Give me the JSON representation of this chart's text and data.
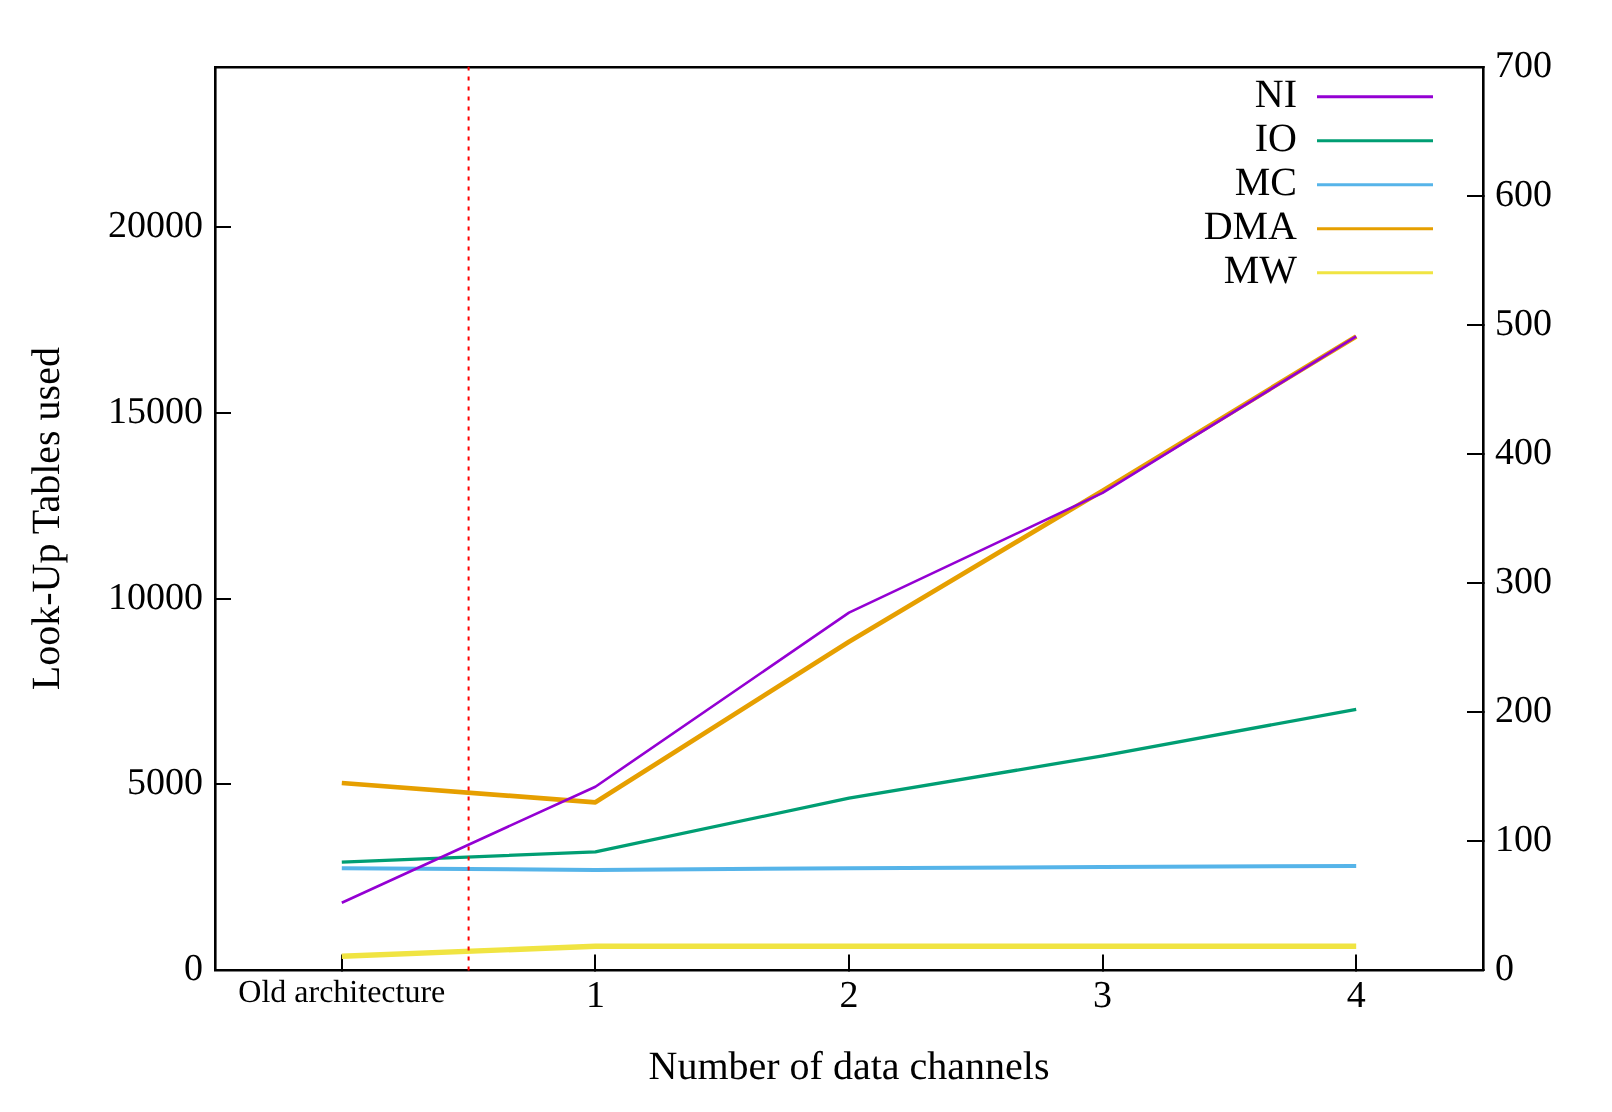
{
  "chart_data": {
    "type": "line",
    "xlabel": "Number of data channels",
    "ylabel": "Look-Up Tables used",
    "x": [
      0,
      1,
      2,
      3,
      4
    ],
    "xlim": [
      -0.5,
      4.5
    ],
    "xticks": [
      {
        "value": 0,
        "label": "Old architecture"
      },
      1,
      2,
      3,
      4
    ],
    "ylim": [
      0,
      24300
    ],
    "yticks": [
      0,
      5000,
      10000,
      15000,
      20000
    ],
    "y2lim": [
      0,
      700
    ],
    "y2ticks": [
      0,
      100,
      200,
      300,
      400,
      500,
      600,
      700
    ],
    "series": [
      {
        "name": "NI",
        "color": "#9400d3",
        "values": [
          1820,
          4940,
          9620,
          12840,
          17050
        ]
      },
      {
        "name": "IO",
        "color": "#009e73",
        "values": [
          2910,
          3190,
          4630,
          5770,
          7020
        ]
      },
      {
        "name": "MC",
        "color": "#56b4e9",
        "values": [
          2750,
          2700,
          2750,
          2780,
          2810
        ]
      },
      {
        "name": "DMA",
        "color": "#e69f00",
        "values": [
          5040,
          4520,
          8840,
          12900,
          17050
        ]
      },
      {
        "name": "MW",
        "color": "#f0e442",
        "values": [
          380,
          650,
          650,
          650,
          650
        ]
      }
    ],
    "ref_lines": [
      {
        "axis": "x",
        "value": 0.5,
        "color": "#ff0000",
        "line_style": "dotted"
      }
    ],
    "legend": "top right",
    "grid": false,
    "marker": "none",
    "line_style": "solid"
  }
}
